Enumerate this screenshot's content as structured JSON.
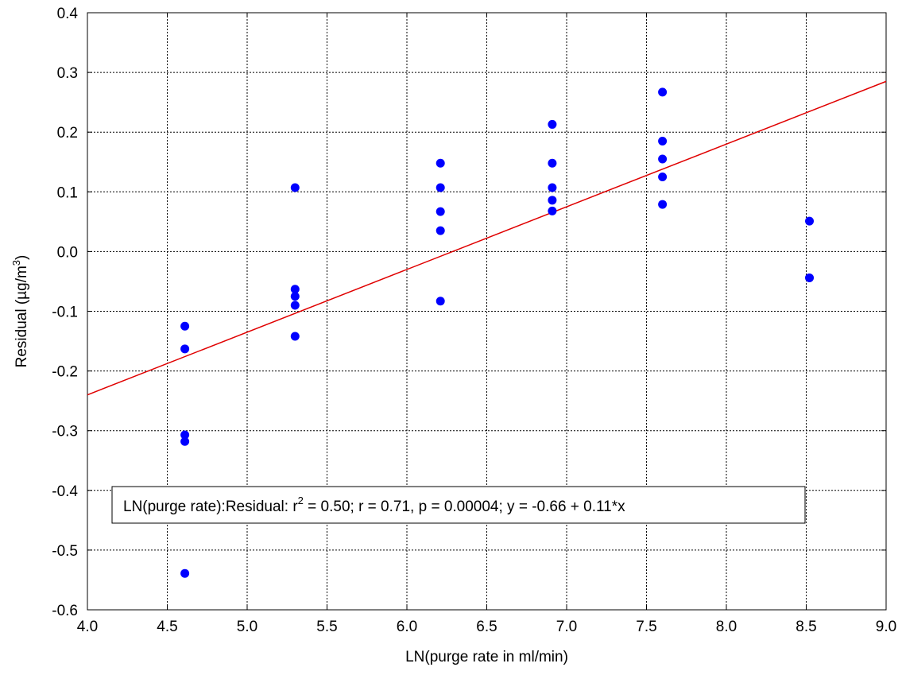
{
  "chart_data": {
    "type": "scatter",
    "title": "",
    "xlabel": "LN(purge rate in ml/min)",
    "ylabel_main": "Residual (µg/m",
    "ylabel_sup": "3",
    "ylabel_end": ")",
    "xlim": [
      4.0,
      9.0
    ],
    "ylim": [
      -0.6,
      0.4
    ],
    "x_ticks": [
      "4.0",
      "4.5",
      "5.0",
      "5.5",
      "6.0",
      "6.5",
      "7.0",
      "7.5",
      "8.0",
      "8.5",
      "9.0"
    ],
    "y_ticks": [
      "-0.6",
      "-0.5",
      "-0.4",
      "-0.3",
      "-0.2",
      "-0.1",
      "0.0",
      "0.1",
      "0.2",
      "0.3",
      "0.4"
    ],
    "grid": true,
    "point_color": "#0000ff",
    "line_color": "#e00000",
    "points": [
      {
        "x": 4.61,
        "y": -0.125
      },
      {
        "x": 4.61,
        "y": -0.163
      },
      {
        "x": 4.61,
        "y": -0.307
      },
      {
        "x": 4.61,
        "y": -0.318
      },
      {
        "x": 4.61,
        "y": -0.539
      },
      {
        "x": 5.3,
        "y": 0.107
      },
      {
        "x": 5.3,
        "y": -0.063
      },
      {
        "x": 5.3,
        "y": -0.075
      },
      {
        "x": 5.3,
        "y": -0.09
      },
      {
        "x": 5.3,
        "y": -0.142
      },
      {
        "x": 6.21,
        "y": 0.148
      },
      {
        "x": 6.21,
        "y": 0.107
      },
      {
        "x": 6.21,
        "y": 0.067
      },
      {
        "x": 6.21,
        "y": 0.035
      },
      {
        "x": 6.21,
        "y": -0.083
      },
      {
        "x": 6.91,
        "y": 0.213
      },
      {
        "x": 6.91,
        "y": 0.148
      },
      {
        "x": 6.91,
        "y": 0.107
      },
      {
        "x": 6.91,
        "y": 0.086
      },
      {
        "x": 6.91,
        "y": 0.068
      },
      {
        "x": 7.6,
        "y": 0.267
      },
      {
        "x": 7.6,
        "y": 0.185
      },
      {
        "x": 7.6,
        "y": 0.155
      },
      {
        "x": 7.6,
        "y": 0.125
      },
      {
        "x": 7.6,
        "y": 0.079
      },
      {
        "x": 8.52,
        "y": 0.051
      },
      {
        "x": 8.52,
        "y": -0.044
      }
    ],
    "fit_line": {
      "intercept": -0.66,
      "slope": 0.105,
      "x_start": 4.0,
      "x_end": 9.0
    },
    "annotation": {
      "prefix": "LN(purge rate):Residual:  r",
      "sup": "2",
      "suffix": " = 0.50;  r = 0.71, p = 0.00004;  y = -0.66 + 0.11*x"
    }
  }
}
